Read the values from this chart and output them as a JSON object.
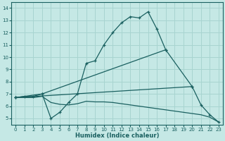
{
  "xlabel": "Humidex (Indice chaleur)",
  "bg_color": "#c5e8e5",
  "grid_color": "#a8d4d0",
  "line_color": "#1a6060",
  "xlim": [
    -0.5,
    23.5
  ],
  "ylim": [
    4.5,
    14.5
  ],
  "xticks": [
    0,
    1,
    2,
    3,
    4,
    5,
    6,
    7,
    8,
    9,
    10,
    11,
    12,
    13,
    14,
    15,
    16,
    17,
    18,
    19,
    20,
    21,
    22,
    23
  ],
  "yticks": [
    5,
    6,
    7,
    8,
    9,
    10,
    11,
    12,
    13,
    14
  ],
  "line1_x": [
    0,
    1,
    2,
    3,
    4,
    5,
    6,
    7,
    8,
    9,
    10,
    11,
    12,
    13,
    14,
    15,
    16,
    17
  ],
  "line1_y": [
    6.7,
    6.8,
    6.8,
    7.0,
    5.0,
    5.5,
    6.3,
    7.0,
    9.5,
    9.7,
    11.0,
    12.0,
    12.8,
    13.3,
    13.2,
    13.7,
    12.3,
    10.6
  ],
  "line2_x": [
    0,
    3,
    17,
    20
  ],
  "line2_y": [
    6.7,
    7.0,
    10.6,
    7.6
  ],
  "line3_x": [
    0,
    20,
    21,
    22,
    23
  ],
  "line3_y": [
    6.7,
    7.6,
    6.1,
    5.3,
    4.7
  ],
  "line4_x": [
    0,
    1,
    2,
    3,
    4,
    5,
    6,
    7,
    8,
    9,
    10,
    11,
    12,
    13,
    14,
    15,
    16,
    17,
    18,
    19,
    20,
    21,
    22,
    23
  ],
  "line4_y": [
    6.7,
    6.7,
    6.7,
    6.8,
    6.3,
    6.15,
    6.1,
    6.2,
    6.4,
    6.35,
    6.35,
    6.3,
    6.2,
    6.1,
    6.0,
    5.9,
    5.8,
    5.7,
    5.6,
    5.5,
    5.4,
    5.3,
    5.1,
    4.7
  ]
}
